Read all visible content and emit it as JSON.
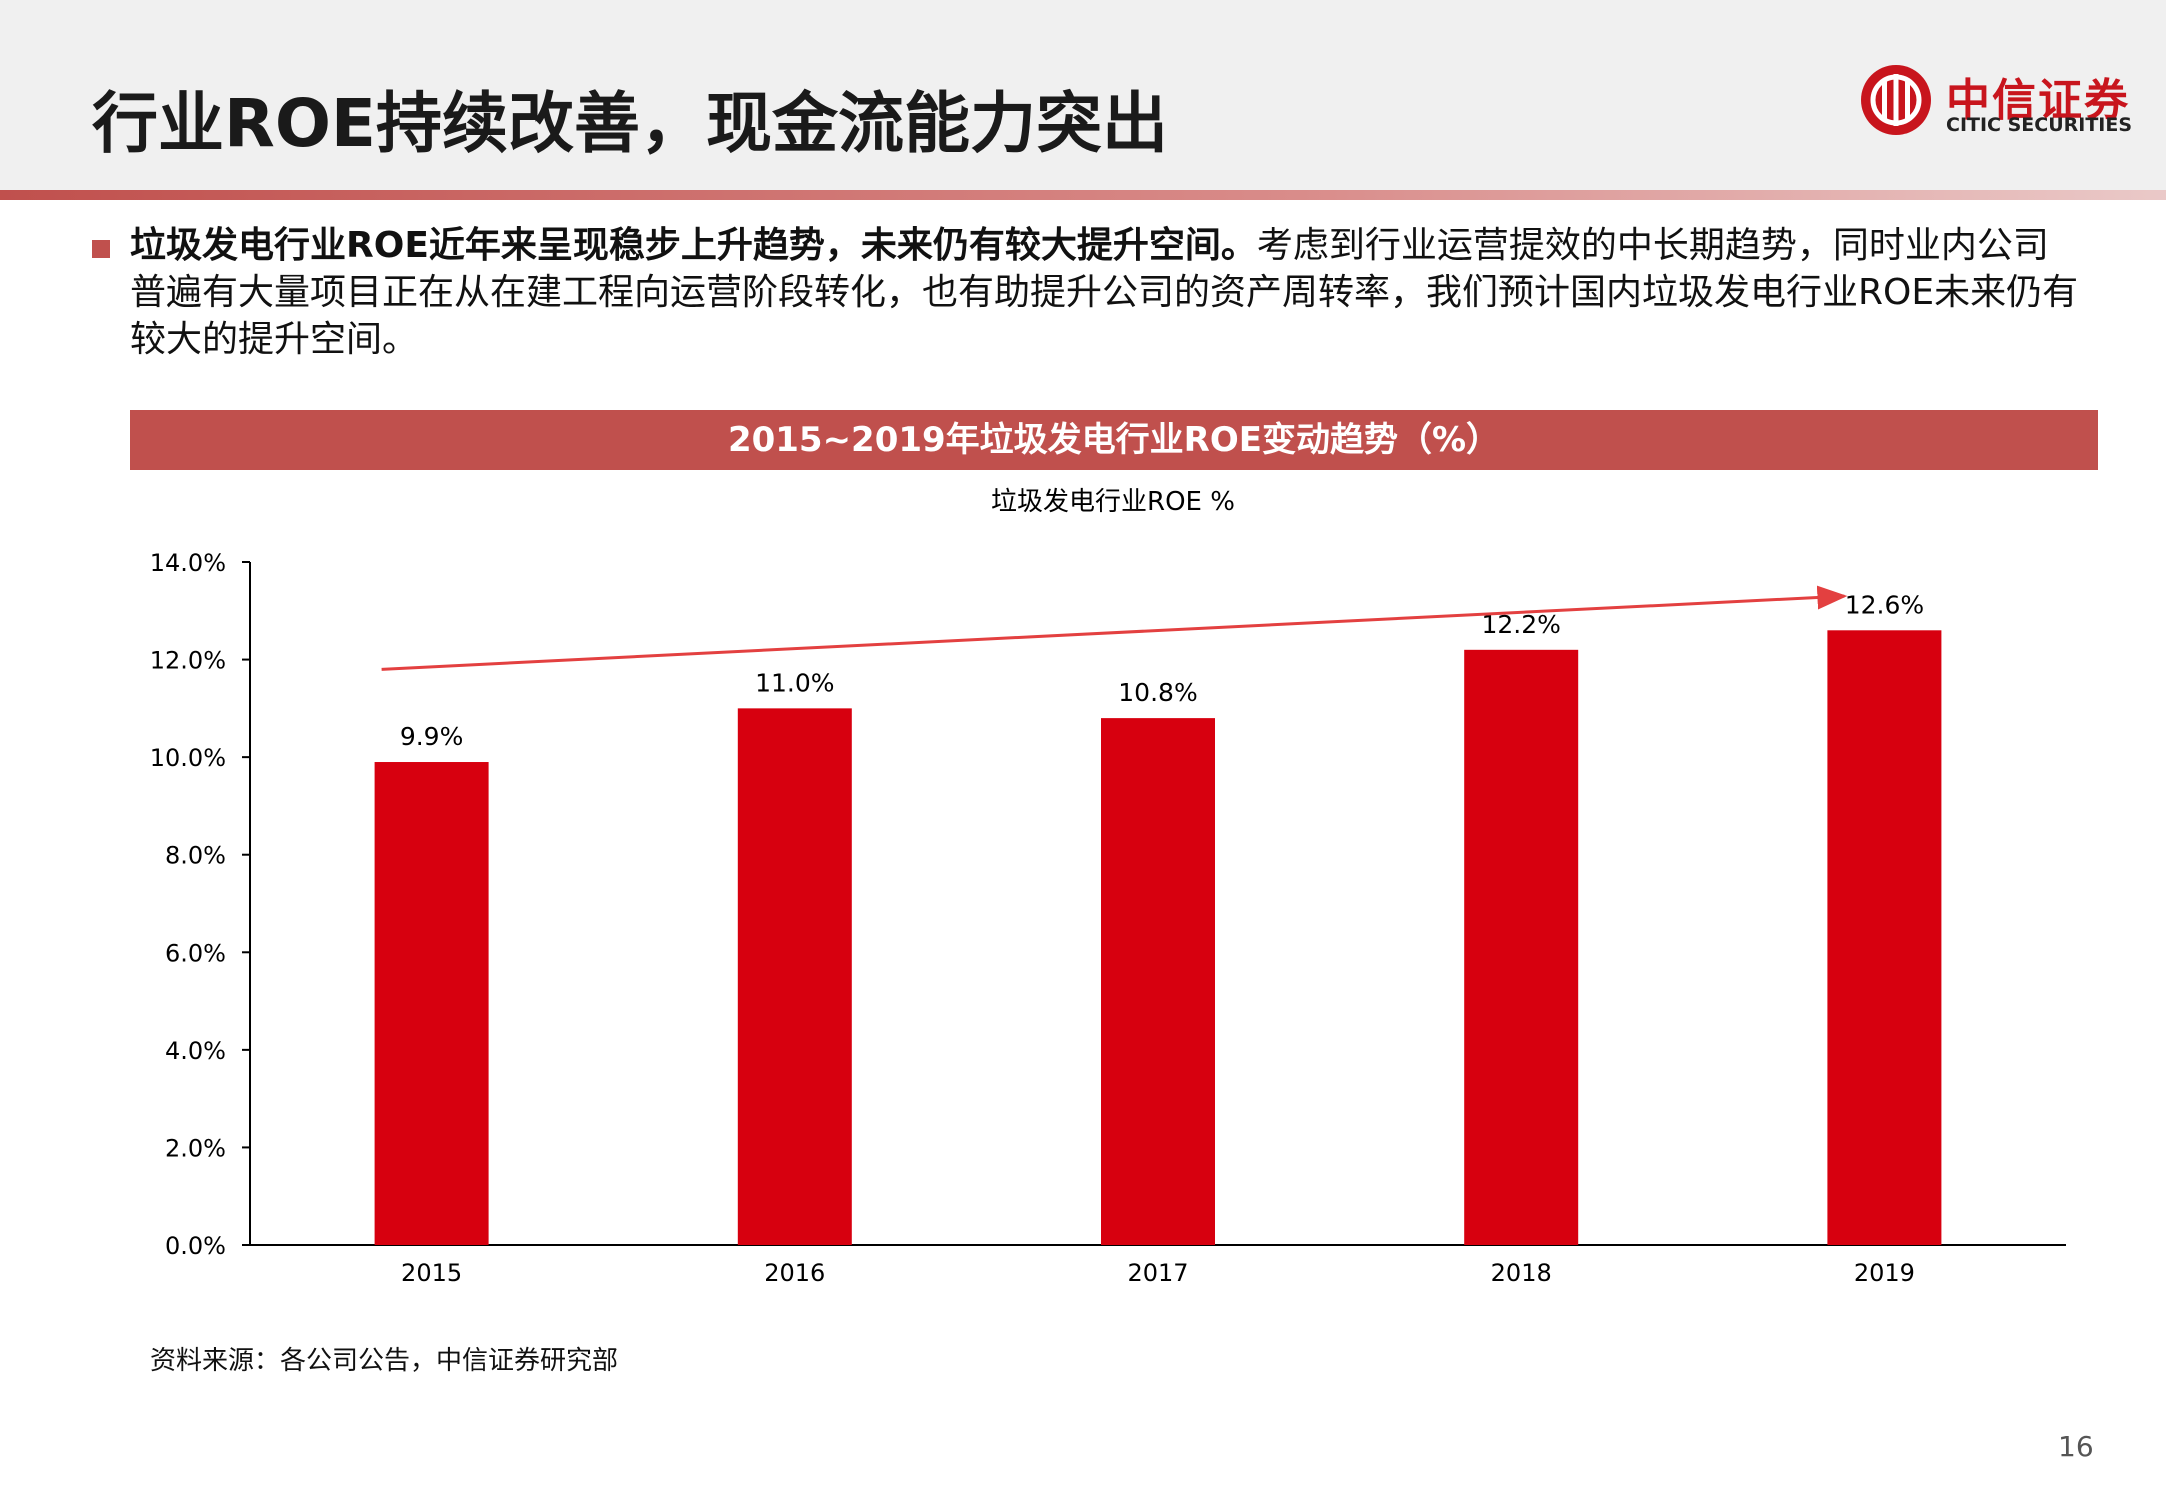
{
  "header": {
    "title": "行业ROE持续改善，现金流能力突出",
    "logo_cn": "中信证券",
    "logo_en": "CITIC SECURITIES"
  },
  "intro": {
    "bold": "垃圾发电行业ROE近年来呈现稳步上升趋势，未来仍有较大提升空间。",
    "text": "考虑到行业运营提效的中长期趋势，同时业内公司普遍有大量项目正在从在建工程向运营阶段转化，也有助提升公司的资产周转率，我们预计国内垃圾发电行业ROE未来仍有较大的提升空间。"
  },
  "banner_title": "2015~2019年垃圾发电行业ROE变动趋势（%）",
  "source": "资料来源：各公司公告，中信证券研究部",
  "page_number": "16",
  "colors": {
    "bar": "#d7000f",
    "accent": "#c0504d",
    "trend": "#e34040"
  },
  "chart_data": {
    "type": "bar",
    "title": "垃圾发电行业ROE %",
    "categories": [
      "2015",
      "2016",
      "2017",
      "2018",
      "2019"
    ],
    "values": [
      9.9,
      11.0,
      10.8,
      12.2,
      12.6
    ],
    "data_labels": [
      "9.9%",
      "11.0%",
      "10.8%",
      "12.2%",
      "12.6%"
    ],
    "ylim": [
      0,
      14
    ],
    "yticks": [
      0,
      2,
      4,
      6,
      8,
      10,
      12,
      14
    ],
    "ytick_labels": [
      "0.0%",
      "2.0%",
      "4.0%",
      "6.0%",
      "8.0%",
      "10.0%",
      "12.0%",
      "14.0%"
    ],
    "grid": false,
    "annotation": "upward trend arrow from 2015 to 2019"
  }
}
